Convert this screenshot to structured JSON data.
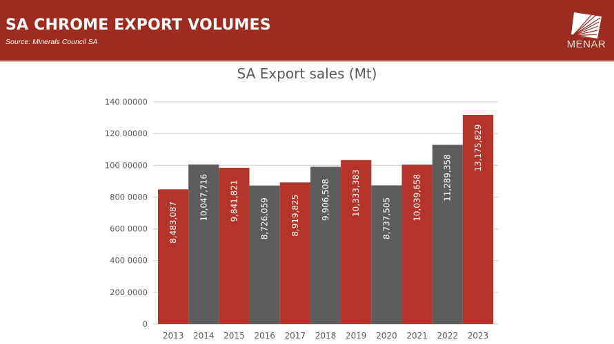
{
  "header": {
    "title": "SA CHROME EXPORT VOLUMES",
    "source": "Source: Minerals Council SA",
    "logo_text": "MENAR",
    "background_color": "#9b2c1f"
  },
  "chart_data": {
    "type": "bar",
    "title": "SA Export sales (Mt)",
    "xlabel": "",
    "ylabel": "",
    "categories": [
      "2013",
      "2014",
      "2015",
      "2016",
      "2017",
      "2018",
      "2019",
      "2020",
      "2021",
      "2022",
      "2023"
    ],
    "values": [
      8483087,
      10047716,
      9841821,
      8726059,
      8919825,
      9906508,
      10333383,
      8737505,
      10039658,
      11289358,
      13175829
    ],
    "data_labels": [
      "8,483,087",
      "10,047,716",
      "9,841,821",
      "8,726,059",
      "8,919,825",
      "9,906,508",
      "10,333,383",
      "8,737,505",
      "10,039,658",
      "11,289,358",
      "13,175,829"
    ],
    "bar_colors": [
      "#b5342a",
      "#5d5d5d",
      "#b5342a",
      "#5d5d5d",
      "#b5342a",
      "#5d5d5d",
      "#b5342a",
      "#5d5d5d",
      "#b5342a",
      "#5d5d5d",
      "#b5342a"
    ],
    "ylim": [
      0,
      14000000
    ],
    "yticks": [
      0,
      2000000,
      4000000,
      6000000,
      8000000,
      10000000,
      12000000,
      14000000
    ],
    "ytick_labels": [
      "0",
      "200 0000",
      "400 0000",
      "600 0000",
      "800 0000",
      "100 00000",
      "120 00000",
      "140 00000"
    ],
    "grid": true,
    "legend": "none"
  }
}
